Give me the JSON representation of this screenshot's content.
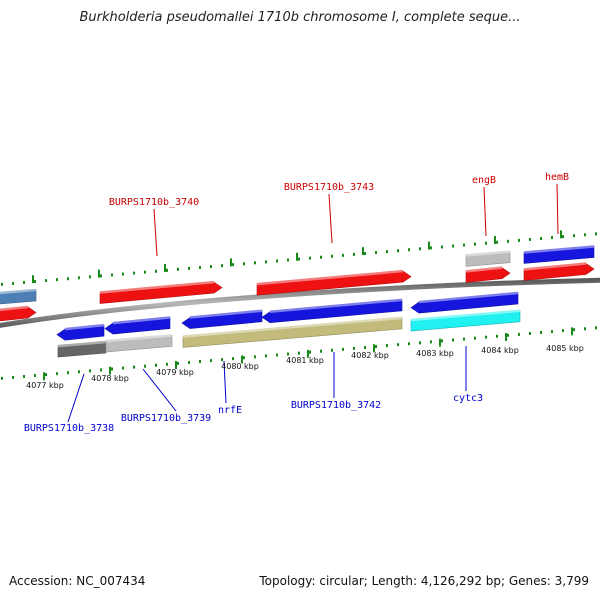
{
  "header": {
    "title": "Burkholderia pseudomallei 1710b chromosome I, complete seque..."
  },
  "footer": {
    "accession": "Accession: NC_007434",
    "summary": "Topology: circular; Length: 4,126,292 bp; Genes: 3,799"
  },
  "colors": {
    "forward_gene": "#ee1111",
    "reverse_gene": "#1515dd",
    "steelblue_gene": "#4d7fb5",
    "gray_gene": "#bcbcbc",
    "darkgray_gene": "#666666",
    "olive_gene": "#c2bb7c",
    "cyan_gene": "#20f0f0",
    "backbone": "#8a8a8a",
    "tick": "#1a8a1a",
    "forward_label": "#cc0000",
    "reverse_label": "#0000cc"
  },
  "axis": {
    "unit": "kbp",
    "ticks": [
      {
        "label": "4077 kbp"
      },
      {
        "label": "4078 kbp"
      },
      {
        "label": "4079 kbp"
      },
      {
        "label": "4080 kbp"
      },
      {
        "label": "4081 kbp"
      },
      {
        "label": "4082 kbp"
      },
      {
        "label": "4083 kbp"
      },
      {
        "label": "4084 kbp"
      },
      {
        "label": "4085 kbp"
      }
    ]
  },
  "genes": {
    "forward": [
      {
        "name": "",
        "color": "steelblue"
      },
      {
        "name": "",
        "color": "red"
      },
      {
        "name": "BURPS1710b_3740",
        "color": "red"
      },
      {
        "name": "BURPS1710b_3743",
        "color": "red"
      },
      {
        "name": "",
        "color": "gray"
      },
      {
        "name": "engB",
        "color": "red"
      },
      {
        "name": "hemB",
        "color": "red"
      },
      {
        "name": "",
        "color": "blue"
      }
    ],
    "reverse": [
      {
        "name": "BURPS1710b_3738",
        "color": "blue"
      },
      {
        "name": "",
        "color": "darkgray"
      },
      {
        "name": "BURPS1710b_3739",
        "color": "blue"
      },
      {
        "name": "",
        "color": "gray"
      },
      {
        "name": "nrfE",
        "color": "blue"
      },
      {
        "name": "",
        "color": "olive"
      },
      {
        "name": "BURPS1710b_3742",
        "color": "blue"
      },
      {
        "name": "cytc3",
        "color": "blue"
      },
      {
        "name": "",
        "color": "cyan"
      }
    ]
  }
}
